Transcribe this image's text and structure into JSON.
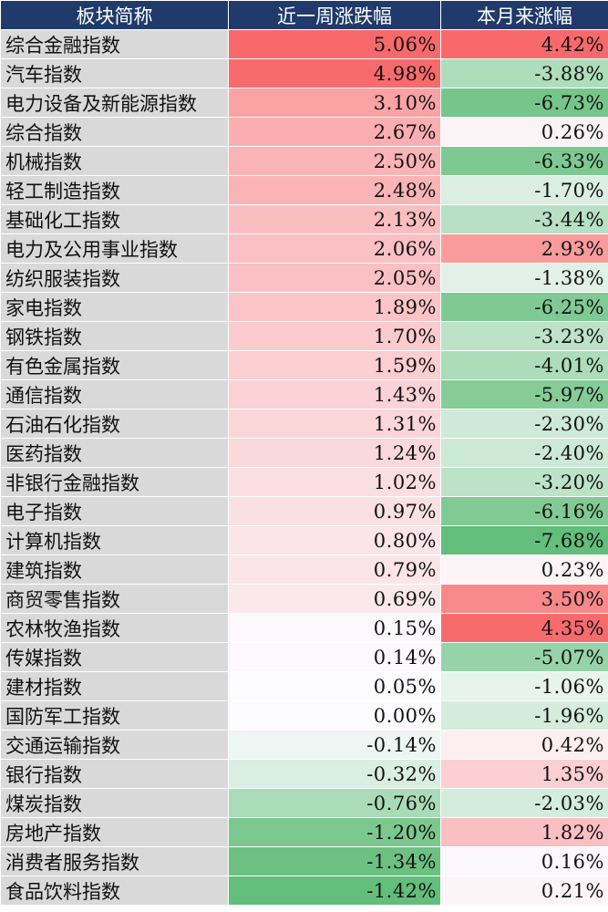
{
  "table": {
    "headers": [
      "板块简称",
      "近一周涨跌幅",
      "本月来涨幅"
    ],
    "colors": {
      "header_bg": "#1f3a6b",
      "name_bg": "#d9d9d9",
      "positive": "#f8696b",
      "negative": "#63be7b",
      "neutral": "#fcfcff"
    },
    "rows": [
      {
        "name": "综合金融指数",
        "week": "5.06%",
        "month": "4.42%"
      },
      {
        "name": "汽车指数",
        "week": "4.98%",
        "month": "-3.88%"
      },
      {
        "name": "电力设备及新能源指数",
        "week": "3.10%",
        "month": "-6.73%"
      },
      {
        "name": "综合指数",
        "week": "2.67%",
        "month": "0.26%"
      },
      {
        "name": "机械指数",
        "week": "2.50%",
        "month": "-6.33%"
      },
      {
        "name": "轻工制造指数",
        "week": "2.48%",
        "month": "-1.70%"
      },
      {
        "name": "基础化工指数",
        "week": "2.13%",
        "month": "-3.44%"
      },
      {
        "name": "电力及公用事业指数",
        "week": "2.06%",
        "month": "2.93%"
      },
      {
        "name": "纺织服装指数",
        "week": "2.05%",
        "month": "-1.38%"
      },
      {
        "name": "家电指数",
        "week": "1.89%",
        "month": "-6.25%"
      },
      {
        "name": "钢铁指数",
        "week": "1.70%",
        "month": "-3.23%"
      },
      {
        "name": "有色金属指数",
        "week": "1.59%",
        "month": "-4.01%"
      },
      {
        "name": "通信指数",
        "week": "1.43%",
        "month": "-5.97%"
      },
      {
        "name": "石油石化指数",
        "week": "1.31%",
        "month": "-2.30%"
      },
      {
        "name": "医药指数",
        "week": "1.24%",
        "month": "-2.40%"
      },
      {
        "name": "非银行金融指数",
        "week": "1.02%",
        "month": "-3.20%"
      },
      {
        "name": "电子指数",
        "week": "0.97%",
        "month": "-6.16%"
      },
      {
        "name": "计算机指数",
        "week": "0.80%",
        "month": "-7.68%"
      },
      {
        "name": "建筑指数",
        "week": "0.79%",
        "month": "0.23%"
      },
      {
        "name": "商贸零售指数",
        "week": "0.69%",
        "month": "3.50%"
      },
      {
        "name": "农林牧渔指数",
        "week": "0.15%",
        "month": "4.35%"
      },
      {
        "name": "传媒指数",
        "week": "0.14%",
        "month": "-5.07%"
      },
      {
        "name": "建材指数",
        "week": "0.05%",
        "month": "-1.06%"
      },
      {
        "name": "国防军工指数",
        "week": "0.00%",
        "month": "-1.96%"
      },
      {
        "name": "交通运输指数",
        "week": "-0.14%",
        "month": "0.42%"
      },
      {
        "name": "银行指数",
        "week": "-0.32%",
        "month": "1.35%"
      },
      {
        "name": "煤炭指数",
        "week": "-0.76%",
        "month": "-2.03%"
      },
      {
        "name": "房地产指数",
        "week": "-1.20%",
        "month": "1.82%"
      },
      {
        "name": "消费者服务指数",
        "week": "-1.34%",
        "month": "0.16%"
      },
      {
        "name": "食品饮料指数",
        "week": "-1.42%",
        "month": "0.21%"
      }
    ]
  }
}
